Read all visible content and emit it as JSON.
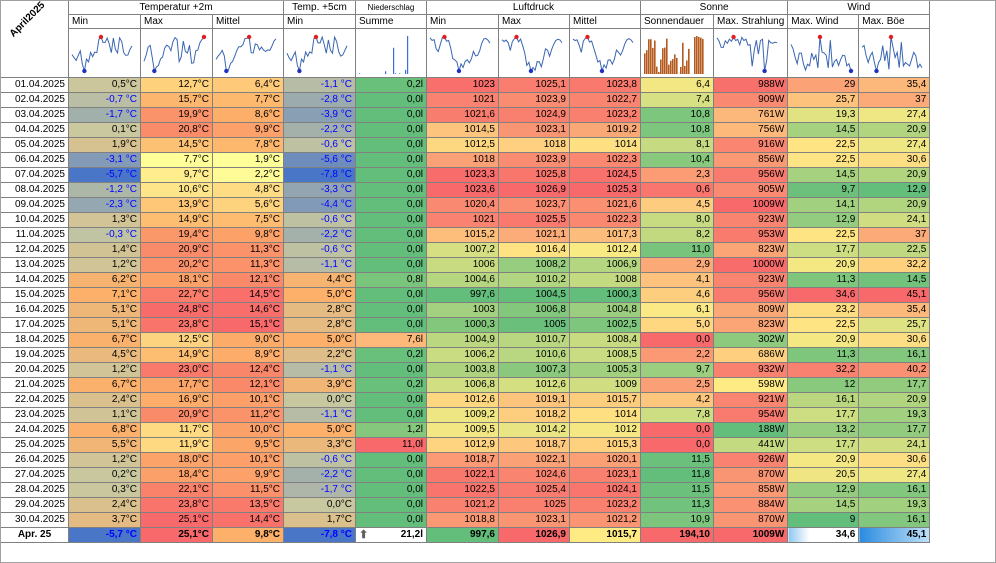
{
  "corner_label": "April2025",
  "groups": [
    {
      "label": "Temperatur +2m",
      "span": 3
    },
    {
      "label": "Temp. +5cm",
      "span": 1
    },
    {
      "label": "Niederschlag",
      "span": 1
    },
    {
      "label": "Luftdruck",
      "span": 3
    },
    {
      "label": "Sonne",
      "span": 2
    },
    {
      "label": "Wind",
      "span": 2
    }
  ],
  "subheaders": [
    "Min",
    "Max",
    "Mittel",
    "Min",
    "Summe",
    "Min",
    "Max",
    "Mittel",
    "Sonnendauer",
    "Max. Strahlung",
    "Max. Wind",
    "Max. Böe"
  ],
  "rows": [
    {
      "date": "01.04.2025",
      "values": [
        "0,5°C",
        "12,7°C",
        "6,4°C",
        "-1,1 °C",
        "0,2l",
        "1023",
        "1025,1",
        "1023,8",
        "6,4",
        "988W",
        "29",
        "35,4"
      ]
    },
    {
      "date": "02.04.2025",
      "values": [
        "-0,7 °C",
        "15,7°C",
        "7,7°C",
        "-2,8 °C",
        "0,0l",
        "1021",
        "1023,9",
        "1022,7",
        "7,4",
        "909W",
        "25,7",
        "37"
      ]
    },
    {
      "date": "03.04.2025",
      "values": [
        "-1,7 °C",
        "19,9°C",
        "8,6°C",
        "-3,9 °C",
        "0,0l",
        "1021,6",
        "1024,9",
        "1023,2",
        "10,8",
        "761W",
        "19,3",
        "27,4"
      ]
    },
    {
      "date": "04.04.2025",
      "values": [
        "0,1°C",
        "20,8°C",
        "9,9°C",
        "-2,2 °C",
        "0,0l",
        "1014,5",
        "1023,1",
        "1019,2",
        "10,8",
        "756W",
        "14,5",
        "20,9"
      ]
    },
    {
      "date": "05.04.2025",
      "values": [
        "1,9°C",
        "14,5°C",
        "7,8°C",
        "-0,6 °C",
        "0,0l",
        "1012,5",
        "1018",
        "1014",
        "8,1",
        "916W",
        "22,5",
        "27,4"
      ]
    },
    {
      "date": "06.04.2025",
      "values": [
        "-3,1 °C",
        "7,7°C",
        "1,9°C",
        "-5,6 °C",
        "0,0l",
        "1018",
        "1023,9",
        "1022,3",
        "10,4",
        "856W",
        "22,5",
        "30,6"
      ]
    },
    {
      "date": "07.04.2025",
      "values": [
        "-5,7 °C",
        "9,7°C",
        "2,2°C",
        "-7,8 °C",
        "0,0l",
        "1023,3",
        "1025,8",
        "1024,5",
        "2,3",
        "956W",
        "14,5",
        "20,9"
      ]
    },
    {
      "date": "08.04.2025",
      "values": [
        "-1,2 °C",
        "10,6°C",
        "4,8°C",
        "-3,3 °C",
        "0,0l",
        "1023,6",
        "1026,9",
        "1025,3",
        "0,6",
        "905W",
        "9,7",
        "12,9"
      ]
    },
    {
      "date": "09.04.2025",
      "values": [
        "-2,3 °C",
        "13,9°C",
        "5,6°C",
        "-4,4 °C",
        "0,0l",
        "1020,4",
        "1023,7",
        "1021,6",
        "4,5",
        "1009W",
        "14,1",
        "20,9"
      ]
    },
    {
      "date": "10.04.2025",
      "values": [
        "1,3°C",
        "14,9°C",
        "7,5°C",
        "-0,6 °C",
        "0,0l",
        "1021",
        "1025,5",
        "1022,3",
        "8,0",
        "923W",
        "12,9",
        "24,1"
      ]
    },
    {
      "date": "11.04.2025",
      "values": [
        "-0,3 °C",
        "19,4°C",
        "9,8°C",
        "-2,2 °C",
        "0,0l",
        "1015,2",
        "1021,1",
        "1017,3",
        "8,2",
        "953W",
        "22,5",
        "37"
      ]
    },
    {
      "date": "12.04.2025",
      "values": [
        "1,4°C",
        "20,9°C",
        "11,3°C",
        "-0,6 °C",
        "0,0l",
        "1007,2",
        "1016,4",
        "1012,4",
        "11,0",
        "823W",
        "17,7",
        "22,5"
      ]
    },
    {
      "date": "13.04.2025",
      "values": [
        "1,2°C",
        "20,2°C",
        "11,3°C",
        "-1,1 °C",
        "0,0l",
        "1006",
        "1008,2",
        "1006,9",
        "2,9",
        "1000W",
        "20,9",
        "32,2"
      ]
    },
    {
      "date": "14.04.2025",
      "values": [
        "6,2°C",
        "18,1°C",
        "12,1°C",
        "4,4°C",
        "0,8l",
        "1004,6",
        "1010,2",
        "1008",
        "4,1",
        "923W",
        "11,3",
        "14,5"
      ]
    },
    {
      "date": "15.04.2025",
      "values": [
        "7,1°C",
        "22,7°C",
        "14,5°C",
        "5,0°C",
        "0,0l",
        "997,6",
        "1004,5",
        "1000,3",
        "4,6",
        "956W",
        "34,6",
        "45,1"
      ]
    },
    {
      "date": "16.04.2025",
      "values": [
        "5,1°C",
        "24,8°C",
        "14,6°C",
        "2,8°C",
        "0,0l",
        "1003",
        "1006,8",
        "1004,8",
        "6,1",
        "809W",
        "23,2",
        "35,4"
      ]
    },
    {
      "date": "17.04.2025",
      "values": [
        "5,1°C",
        "23,8°C",
        "15,1°C",
        "2,8°C",
        "0,0l",
        "1000,3",
        "1005",
        "1002,5",
        "5,0",
        "823W",
        "22,5",
        "25,7"
      ]
    },
    {
      "date": "18.04.2025",
      "values": [
        "6,7°C",
        "12,5°C",
        "9,0°C",
        "5,0°C",
        "7,6l",
        "1004,9",
        "1010,7",
        "1008,4",
        "0,0",
        "302W",
        "20,9",
        "30,6"
      ]
    },
    {
      "date": "19.04.2025",
      "values": [
        "4,5°C",
        "14,9°C",
        "8,9°C",
        "2,2°C",
        "0,2l",
        "1006,2",
        "1010,6",
        "1008,5",
        "2,2",
        "686W",
        "11,3",
        "16,1"
      ]
    },
    {
      "date": "20.04.2025",
      "values": [
        "1,2°C",
        "23,0°C",
        "12,4°C",
        "-1,1 °C",
        "0,0l",
        "1003,8",
        "1007,3",
        "1005,3",
        "9,7",
        "932W",
        "32,2",
        "40,2"
      ]
    },
    {
      "date": "21.04.2025",
      "values": [
        "6,7°C",
        "17,7°C",
        "12,1°C",
        "3,9°C",
        "0,2l",
        "1006,8",
        "1012,6",
        "1009",
        "2,5",
        "598W",
        "12",
        "17,7"
      ]
    },
    {
      "date": "22.04.2025",
      "values": [
        "2,4°C",
        "16,9°C",
        "10,1°C",
        "0,0°C",
        "0,0l",
        "1012,6",
        "1019,1",
        "1015,7",
        "4,2",
        "921W",
        "16,1",
        "20,9"
      ]
    },
    {
      "date": "23.04.2025",
      "values": [
        "1,1°C",
        "20,9°C",
        "11,2°C",
        "-1,1 °C",
        "0,0l",
        "1009,2",
        "1018,2",
        "1014",
        "7,8",
        "954W",
        "17,7",
        "19,3"
      ]
    },
    {
      "date": "24.04.2025",
      "values": [
        "6,8°C",
        "11,7°C",
        "10,0°C",
        "5,0°C",
        "1,2l",
        "1009,5",
        "1014,2",
        "1012",
        "0,0",
        "188W",
        "13,2",
        "17,7"
      ]
    },
    {
      "date": "25.04.2025",
      "values": [
        "5,5°C",
        "11,9°C",
        "9,5°C",
        "3,3°C",
        "11,0l",
        "1012,9",
        "1018,7",
        "1015,3",
        "0,0",
        "441W",
        "17,7",
        "24,1"
      ]
    },
    {
      "date": "26.04.2025",
      "values": [
        "1,2°C",
        "18,0°C",
        "10,1°C",
        "-0,6 °C",
        "0,0l",
        "1018,7",
        "1022,1",
        "1020,1",
        "11,5",
        "926W",
        "20,9",
        "30,6"
      ]
    },
    {
      "date": "27.04.2025",
      "values": [
        "0,2°C",
        "18,4°C",
        "9,9°C",
        "-2,2 °C",
        "0,0l",
        "1022,1",
        "1024,6",
        "1023,1",
        "11,8",
        "870W",
        "20,5",
        "27,4"
      ]
    },
    {
      "date": "28.04.2025",
      "values": [
        "0,3°C",
        "22,1°C",
        "11,5°C",
        "-1,7 °C",
        "0,0l",
        "1022,5",
        "1025,4",
        "1024,1",
        "11,5",
        "858W",
        "12,9",
        "16,1"
      ]
    },
    {
      "date": "29.04.2025",
      "values": [
        "2,4°C",
        "23,8°C",
        "13,5°C",
        "0,0°C",
        "0,0l",
        "1021,2",
        "1025",
        "1023,2",
        "11,3",
        "884W",
        "14,5",
        "19,3"
      ]
    },
    {
      "date": "30.04.2025",
      "values": [
        "3,7°C",
        "25,1°C",
        "14,4°C",
        "1,7°C",
        "0,0l",
        "1018,8",
        "1023,1",
        "1021,2",
        "10,9",
        "870W",
        "9",
        "16,1"
      ]
    }
  ],
  "summary": {
    "label": "Apr. 25",
    "values": [
      "-5,7 °C",
      "25,1°C",
      "9,8°C",
      "-7,8 °C",
      "21,2l",
      "997,6",
      "1026,9",
      "1015,7",
      "194,10",
      "1009W",
      "34,6",
      "45,1"
    ]
  },
  "series": {
    "tmin": [
      0.5,
      -0.7,
      -1.7,
      0.1,
      1.9,
      -3.1,
      -5.7,
      -1.2,
      -2.3,
      1.3,
      -0.3,
      1.4,
      1.2,
      6.2,
      7.1,
      5.1,
      5.1,
      6.7,
      4.5,
      1.2,
      6.7,
      2.4,
      1.1,
      6.8,
      5.5,
      1.2,
      0.2,
      0.3,
      2.4,
      3.7
    ],
    "tmax": [
      12.7,
      15.7,
      19.9,
      20.8,
      14.5,
      7.7,
      9.7,
      10.6,
      13.9,
      14.9,
      19.4,
      20.9,
      20.2,
      18.1,
      22.7,
      24.8,
      23.8,
      12.5,
      14.9,
      23.0,
      17.7,
      16.9,
      20.9,
      11.7,
      11.9,
      18.0,
      18.4,
      22.1,
      23.8,
      25.1
    ],
    "tmean": [
      6.4,
      7.7,
      8.6,
      9.9,
      7.8,
      1.9,
      2.2,
      4.8,
      5.6,
      7.5,
      9.8,
      11.3,
      11.3,
      12.1,
      14.5,
      14.6,
      15.1,
      9.0,
      8.9,
      12.4,
      12.1,
      10.1,
      11.2,
      10.0,
      9.5,
      10.1,
      9.9,
      11.5,
      13.5,
      14.4
    ],
    "t5": [
      -1.1,
      -2.8,
      -3.9,
      -2.2,
      -0.6,
      -5.6,
      -7.8,
      -3.3,
      -4.4,
      -0.6,
      -2.2,
      -0.6,
      -1.1,
      4.4,
      5.0,
      2.8,
      2.8,
      5.0,
      2.2,
      -1.1,
      3.9,
      0.0,
      -1.1,
      5.0,
      3.3,
      -0.6,
      -2.2,
      -1.7,
      0.0,
      1.7
    ],
    "rain": [
      0.2,
      0,
      0,
      0,
      0,
      0,
      0,
      0,
      0,
      0,
      0,
      0,
      0,
      0.8,
      0,
      0,
      0,
      7.6,
      0.2,
      0,
      0.2,
      0,
      0,
      1.2,
      11.0,
      0,
      0,
      0,
      0,
      0
    ],
    "pmin": [
      1023,
      1021,
      1021.6,
      1014.5,
      1012.5,
      1018,
      1023.3,
      1023.6,
      1020.4,
      1021,
      1015.2,
      1007.2,
      1006,
      1004.6,
      997.6,
      1003,
      1000.3,
      1004.9,
      1006.2,
      1003.8,
      1006.8,
      1012.6,
      1009.2,
      1009.5,
      1012.9,
      1018.7,
      1022.1,
      1022.5,
      1021.2,
      1018.8
    ],
    "pmax": [
      1025.1,
      1023.9,
      1024.9,
      1023.1,
      1018,
      1023.9,
      1025.8,
      1026.9,
      1023.7,
      1025.5,
      1021.1,
      1016.4,
      1008.2,
      1010.2,
      1004.5,
      1006.8,
      1005,
      1010.7,
      1010.6,
      1007.3,
      1012.6,
      1019.1,
      1018.2,
      1014.2,
      1018.7,
      1022.1,
      1024.6,
      1025.4,
      1025,
      1023.1
    ],
    "pmean": [
      1023.8,
      1022.7,
      1023.2,
      1019.2,
      1014,
      1022.3,
      1024.5,
      1025.3,
      1021.6,
      1022.3,
      1017.3,
      1012.4,
      1006.9,
      1008,
      1000.3,
      1004.8,
      1002.5,
      1008.4,
      1008.5,
      1005.3,
      1009,
      1015.7,
      1014,
      1012,
      1015.3,
      1020.1,
      1023.1,
      1024.1,
      1023.2,
      1021.2
    ],
    "sun": [
      6.4,
      7.4,
      10.8,
      10.8,
      8.1,
      10.4,
      2.3,
      0.6,
      4.5,
      8.0,
      8.2,
      11.0,
      2.9,
      4.1,
      4.6,
      6.1,
      5.0,
      0.0,
      2.2,
      9.7,
      2.5,
      4.2,
      7.8,
      0.0,
      0.0,
      11.5,
      11.8,
      11.5,
      11.3,
      10.9
    ],
    "rad": [
      988,
      909,
      761,
      756,
      916,
      856,
      956,
      905,
      1009,
      923,
      953,
      823,
      1000,
      923,
      956,
      809,
      823,
      302,
      686,
      932,
      598,
      921,
      954,
      188,
      441,
      926,
      870,
      858,
      884,
      870
    ],
    "wind": [
      29,
      25.7,
      19.3,
      14.5,
      22.5,
      22.5,
      14.5,
      9.7,
      14.1,
      12.9,
      22.5,
      17.7,
      20.9,
      11.3,
      34.6,
      23.2,
      22.5,
      20.9,
      11.3,
      32.2,
      12,
      16.1,
      17.7,
      13.2,
      17.7,
      20.9,
      20.5,
      12.9,
      14.5,
      9
    ],
    "gust": [
      35.4,
      37,
      27.4,
      20.9,
      27.4,
      30.6,
      20.9,
      12.9,
      20.9,
      24.1,
      37,
      22.5,
      32.2,
      14.5,
      45.1,
      35.4,
      25.7,
      30.6,
      16.1,
      40.2,
      17.7,
      20.9,
      19.3,
      17.7,
      24.1,
      30.6,
      27.4,
      16.1,
      19.3,
      16.1
    ]
  },
  "colors": {
    "cold_deep": "#4a76c8",
    "cold": "#9fb4d2",
    "neutral": "#ffff99",
    "good": "#63be7b",
    "yellow": "#ffeb84",
    "orange": "#fdb069",
    "red": "#f8696b",
    "rain_bar": "#3a6fd8",
    "sun_bar": "#b35a1f",
    "spark_line": "#3a66b0"
  },
  "row_colors": {
    "tmin": "cold-warm",
    "tmax": "yellow-red",
    "tmean": "yellow-red",
    "t5": "cold-warm",
    "rain": "green-red",
    "pmin": "green-red",
    "pmax": "green-red",
    "pmean": "green-red",
    "sun": "yellow-green",
    "rad": "green-red",
    "wind": "green-red",
    "gust": "green-red"
  }
}
